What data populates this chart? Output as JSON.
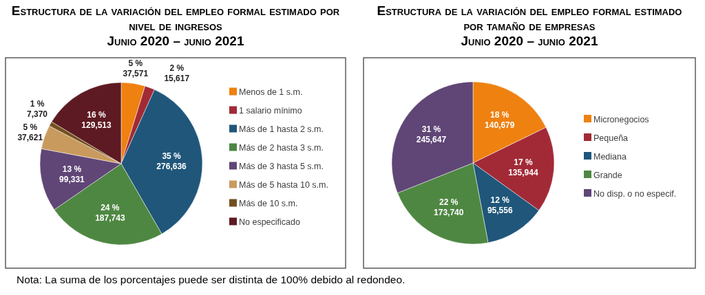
{
  "chart_data": [
    {
      "type": "pie",
      "title": "Estructura de la variación del empleo formal estimado por nivel de ingresos",
      "subtitle": "Junio 2020 – junio 2021",
      "categories": [
        "Menos de 1 s.m.",
        "1 salario mínimo",
        "Más de 1 hasta 2 s.m.",
        "Más de 2 hasta 3 s.m.",
        "Más de 3 hasta 5 s.m.",
        "Más de 5 hasta 10 s.m.",
        "Más de 10 s.m.",
        "No especificado"
      ],
      "values": [
        37571,
        15617,
        276636,
        187743,
        99331,
        37621,
        7370,
        129513
      ],
      "value_labels": [
        "5 %\n37,571",
        "2 %\n15,617",
        "35 %\n276,636",
        "24 %\n187,743",
        "13 %\n99,331",
        "5 %\n37,621",
        "1 %\n7,370",
        "16 %\n129,513"
      ],
      "colors": [
        "#ee8110",
        "#a22a36",
        "#1f567a",
        "#4e8742",
        "#5f4676",
        "#c99a5e",
        "#74501f",
        "#5e1a22"
      ],
      "legend": "right",
      "annotations": [
        "Nota:  La suma de los porcentajes puede ser distinta de 100% debido al redondeo."
      ]
    },
    {
      "type": "pie",
      "title": "Estructura de la variación del empleo formal estimado por tamaño de empresas",
      "subtitle": "Junio 2020 – junio 2021",
      "categories": [
        "Micronegocios",
        "Pequeña",
        "Mediana",
        "Grande",
        "No disp. o no especif."
      ],
      "values": [
        140679,
        135944,
        95556,
        173740,
        245647
      ],
      "value_labels": [
        "18 %\n140,679",
        "17 %\n135,944",
        "12 %\n95,556",
        "22 %\n173,740",
        "31 %\n245,647"
      ],
      "colors": [
        "#ee8110",
        "#a22a36",
        "#1f567a",
        "#4e8742",
        "#5f4676"
      ],
      "legend": "right"
    }
  ]
}
